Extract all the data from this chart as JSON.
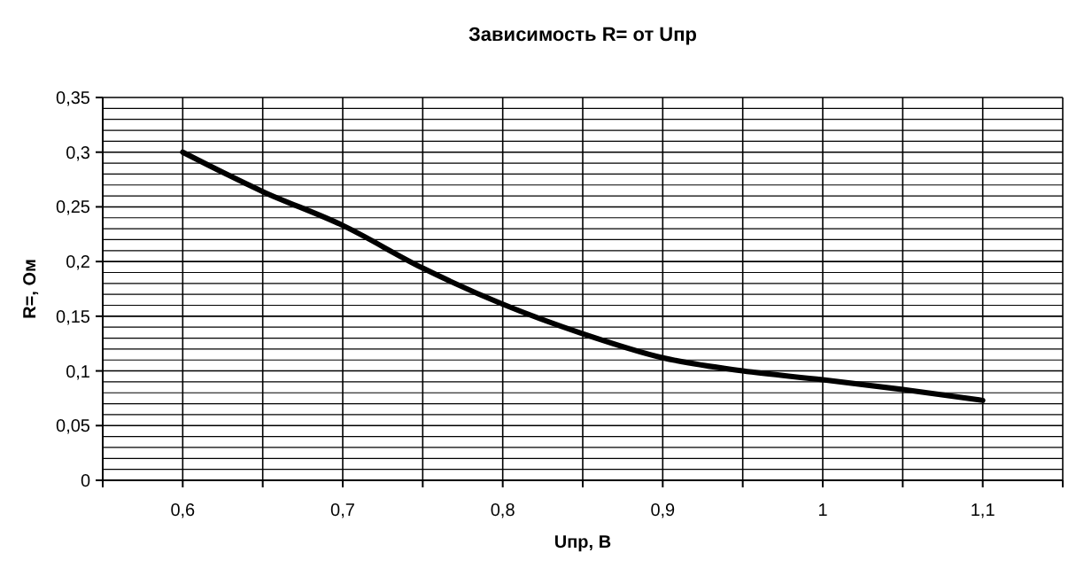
{
  "chart_data": {
    "type": "line",
    "title": "Зависимость R= от Uпр",
    "xlabel": "Uпр, В",
    "ylabel": "R=, Ом",
    "x": [
      0.6,
      0.65,
      0.7,
      0.75,
      0.8,
      0.85,
      0.9,
      0.95,
      1.0,
      1.05,
      1.1
    ],
    "series": [
      {
        "color": "#000000",
        "values": [
          0.3,
          0.264,
          0.233,
          0.194,
          0.161,
          0.134,
          0.112,
          0.1,
          0.092,
          0.083,
          0.073
        ]
      }
    ],
    "xlim": [
      0.55,
      1.15
    ],
    "xticks": [
      {
        "value": 0.55,
        "label": null
      },
      {
        "value": 0.6,
        "label": "0,6"
      },
      {
        "value": 0.65,
        "label": null
      },
      {
        "value": 0.7,
        "label": "0,7"
      },
      {
        "value": 0.75,
        "label": null
      },
      {
        "value": 0.8,
        "label": "0,8"
      },
      {
        "value": 0.85,
        "label": null
      },
      {
        "value": 0.9,
        "label": "0,9"
      },
      {
        "value": 0.95,
        "label": null
      },
      {
        "value": 1,
        "label": "1"
      },
      {
        "value": 1.05,
        "label": null
      },
      {
        "value": 1.1,
        "label": "1,1"
      },
      {
        "value": 1.15,
        "label": null
      }
    ],
    "ylim": [
      0,
      0.35
    ],
    "yticks": [
      0,
      {
        "value": 0.05,
        "label": "0,05"
      },
      {
        "value": 0.1,
        "label": "0,1"
      },
      {
        "value": 0.15,
        "label": "0,15"
      },
      {
        "value": 0.2,
        "label": "0,2"
      },
      {
        "value": 0.25,
        "label": "0,25"
      },
      {
        "value": 0.3,
        "label": "0,3"
      },
      {
        "value": 0.35,
        "label": "0,35"
      }
    ],
    "grid": true,
    "marker": "none",
    "line_style": "solid"
  }
}
